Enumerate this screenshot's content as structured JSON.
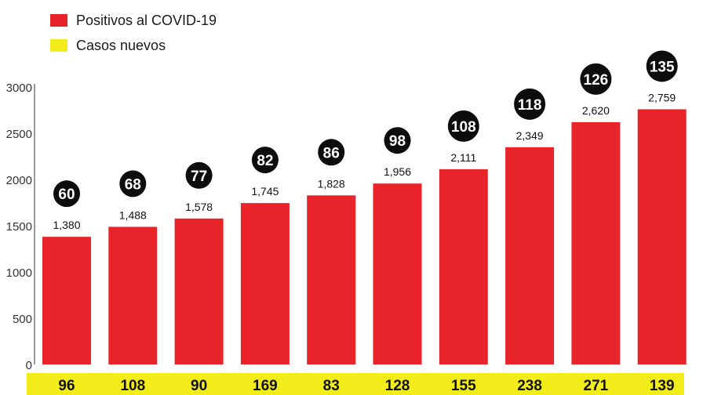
{
  "legend": {
    "items": [
      {
        "label": "Positivos al COVID-19",
        "color": "#e8232a"
      },
      {
        "label": "Casos nuevos",
        "color": "#f2ec1a"
      }
    ]
  },
  "chart_data": {
    "type": "bar",
    "title": "",
    "xlabel": "",
    "ylabel": "",
    "ylim": [
      0,
      3000
    ],
    "yticks": [
      0,
      500,
      1000,
      1500,
      2000,
      2500,
      3000
    ],
    "grid": false,
    "legend_position": "top-left",
    "series": [
      {
        "name": "Positivos al COVID-19",
        "color": "#e8232a",
        "values": [
          1380,
          1488,
          1578,
          1745,
          1828,
          1956,
          2111,
          2349,
          2620,
          2759
        ],
        "labels": [
          "1,380",
          "1,488",
          "1,578",
          "1,745",
          "1,828",
          "1,956",
          "2,111",
          "2,349",
          "2,620",
          "2,759"
        ]
      },
      {
        "name": "Casos nuevos",
        "color": "#f2ec1a",
        "values": [
          96,
          108,
          90,
          169,
          83,
          128,
          155,
          238,
          271,
          139
        ]
      }
    ],
    "bubbles": [
      60,
      68,
      77,
      82,
      86,
      98,
      108,
      118,
      126,
      135
    ]
  }
}
